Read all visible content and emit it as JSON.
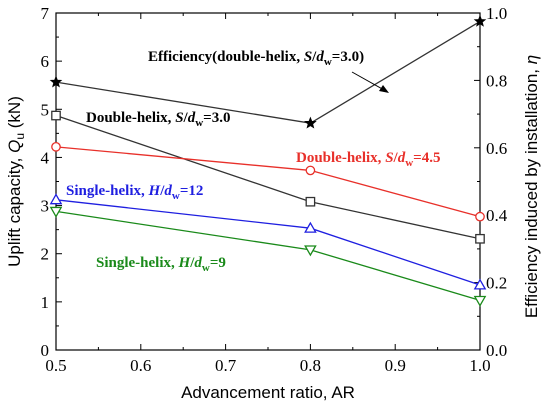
{
  "chart_data": {
    "type": "line",
    "title": "",
    "xlabel": "Advancement ratio, AR",
    "ylabel_left": {
      "main": "Uplift capacity, ",
      "sym": "Q",
      "sub": "u",
      "unit": " (kN)"
    },
    "ylabel_right": {
      "main": "Efficiency induced by installation, ",
      "sym": "η"
    },
    "xlim": [
      0.5,
      1.0
    ],
    "ylim_left": [
      0,
      7
    ],
    "ylim_right": [
      0.0,
      1.0
    ],
    "x_ticks": [
      "0.5",
      "0.6",
      "0.7",
      "0.8",
      "0.9",
      "1.0"
    ],
    "y_left_ticks": [
      "0",
      "1",
      "2",
      "3",
      "4",
      "5",
      "6",
      "7"
    ],
    "y_right_ticks": [
      "0.0",
      "0.2",
      "0.4",
      "0.6",
      "0.8",
      "1.0"
    ],
    "grid": false,
    "series": [
      {
        "name": "Efficiency(double-helix, S/dw=3.0)",
        "axis": "right",
        "color": "#333333",
        "marker": "star",
        "x": [
          0.5,
          0.8,
          1.0
        ],
        "y": [
          0.795,
          0.673,
          0.975
        ]
      },
      {
        "name": "Double-helix, S/dw=3.0",
        "axis": "left",
        "color": "#333333",
        "marker": "square",
        "x": [
          0.5,
          0.8,
          1.0
        ],
        "y": [
          4.87,
          3.08,
          2.31
        ]
      },
      {
        "name": "Double-helix, S/dw=4.5",
        "axis": "left",
        "color": "#e8302a",
        "marker": "circle",
        "x": [
          0.5,
          0.8,
          1.0
        ],
        "y": [
          4.22,
          3.73,
          2.77
        ]
      },
      {
        "name": "Single-helix, H/dw=12",
        "axis": "left",
        "color": "#1f1fe0",
        "marker": "triangle-up",
        "x": [
          0.5,
          0.8,
          1.0
        ],
        "y": [
          3.12,
          2.53,
          1.35
        ]
      },
      {
        "name": "Single-helix, H/dw=9",
        "axis": "left",
        "color": "#1a8a1a",
        "marker": "triangle-down",
        "x": [
          0.5,
          0.8,
          1.0
        ],
        "y": [
          2.88,
          2.08,
          1.03
        ]
      }
    ],
    "annotations": [
      {
        "id": "eff",
        "pre": "Efficiency(double-helix, ",
        "sym": "S",
        "mid": "/",
        "sym2": "d",
        "sub": "w",
        "post": "=3.0)",
        "color": "#000000"
      },
      {
        "id": "dh30",
        "pre": "Double-helix, ",
        "sym": "S",
        "mid": "/",
        "sym2": "d",
        "sub": "w",
        "post": "=3.0",
        "color": "#000000"
      },
      {
        "id": "dh45",
        "pre": "Double-helix, ",
        "sym": "S",
        "mid": "/",
        "sym2": "d",
        "sub": "w",
        "post": "=4.5",
        "color": "#e8302a"
      },
      {
        "id": "sh12",
        "pre": "Single-helix, ",
        "sym": "H",
        "mid": "/",
        "sym2": "d",
        "sub": "w",
        "post": "=12",
        "color": "#1f1fe0"
      },
      {
        "id": "sh9",
        "pre": "Single-helix, ",
        "sym": "H",
        "mid": "/",
        "sym2": "d",
        "sub": "w",
        "post": "=9",
        "color": "#1a8a1a"
      }
    ]
  }
}
